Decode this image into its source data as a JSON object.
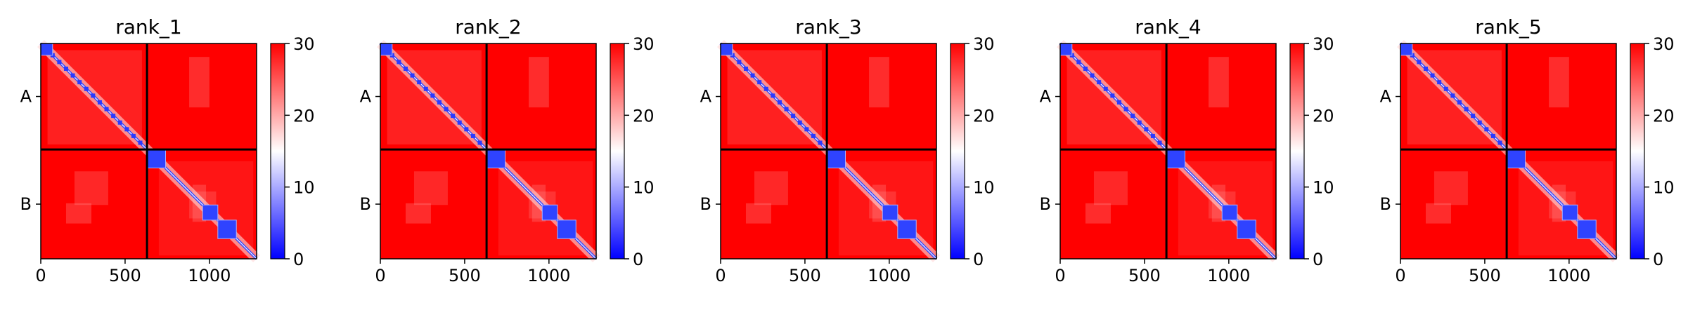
{
  "chart_data": [
    {
      "type": "heatmap",
      "title": "rank_1",
      "x_ticks": [
        0,
        500,
        1000
      ],
      "x_lim": [
        0,
        1280
      ],
      "y_tick_labels": [
        "A",
        "B"
      ],
      "segment_boundary": 630,
      "colorbar": {
        "min": 0,
        "max": 30,
        "ticks": [
          0,
          10,
          20,
          30
        ],
        "colormap": "bwr"
      },
      "diagonal_blocks_low_distance": [
        [
          0,
          70
        ],
        [
          630,
          740
        ],
        [
          960,
          1050
        ],
        [
          1050,
          1160
        ]
      ],
      "background_value": 30
    },
    {
      "type": "heatmap",
      "title": "rank_2",
      "x_ticks": [
        0,
        500,
        1000
      ],
      "x_lim": [
        0,
        1280
      ],
      "y_tick_labels": [
        "A",
        "B"
      ],
      "segment_boundary": 630,
      "colorbar": {
        "min": 0,
        "max": 30,
        "ticks": [
          0,
          10,
          20,
          30
        ],
        "colormap": "bwr"
      },
      "diagonal_blocks_low_distance": [
        [
          0,
          70
        ],
        [
          630,
          740
        ],
        [
          960,
          1050
        ],
        [
          1050,
          1160
        ]
      ],
      "background_value": 30
    },
    {
      "type": "heatmap",
      "title": "rank_3",
      "x_ticks": [
        0,
        500,
        1000
      ],
      "x_lim": [
        0,
        1280
      ],
      "y_tick_labels": [
        "A",
        "B"
      ],
      "segment_boundary": 630,
      "colorbar": {
        "min": 0,
        "max": 30,
        "ticks": [
          0,
          10,
          20,
          30
        ],
        "colormap": "bwr"
      },
      "diagonal_blocks_low_distance": [
        [
          0,
          70
        ],
        [
          630,
          740
        ],
        [
          960,
          1050
        ],
        [
          1050,
          1160
        ]
      ],
      "background_value": 30
    },
    {
      "type": "heatmap",
      "title": "rank_4",
      "x_ticks": [
        0,
        500,
        1000
      ],
      "x_lim": [
        0,
        1280
      ],
      "y_tick_labels": [
        "A",
        "B"
      ],
      "segment_boundary": 630,
      "colorbar": {
        "min": 0,
        "max": 30,
        "ticks": [
          0,
          10,
          20,
          30
        ],
        "colormap": "bwr"
      },
      "diagonal_blocks_low_distance": [
        [
          0,
          70
        ],
        [
          630,
          740
        ],
        [
          960,
          1050
        ],
        [
          1050,
          1160
        ]
      ],
      "background_value": 30
    },
    {
      "type": "heatmap",
      "title": "rank_5",
      "x_ticks": [
        0,
        500,
        1000
      ],
      "x_lim": [
        0,
        1280
      ],
      "y_tick_labels": [
        "A",
        "B"
      ],
      "segment_boundary": 630,
      "colorbar": {
        "min": 0,
        "max": 30,
        "ticks": [
          0,
          10,
          20,
          30
        ],
        "colormap": "bwr"
      },
      "diagonal_blocks_low_distance": [
        [
          0,
          70
        ],
        [
          630,
          740
        ],
        [
          960,
          1050
        ],
        [
          1050,
          1160
        ]
      ],
      "background_value": 30
    }
  ]
}
